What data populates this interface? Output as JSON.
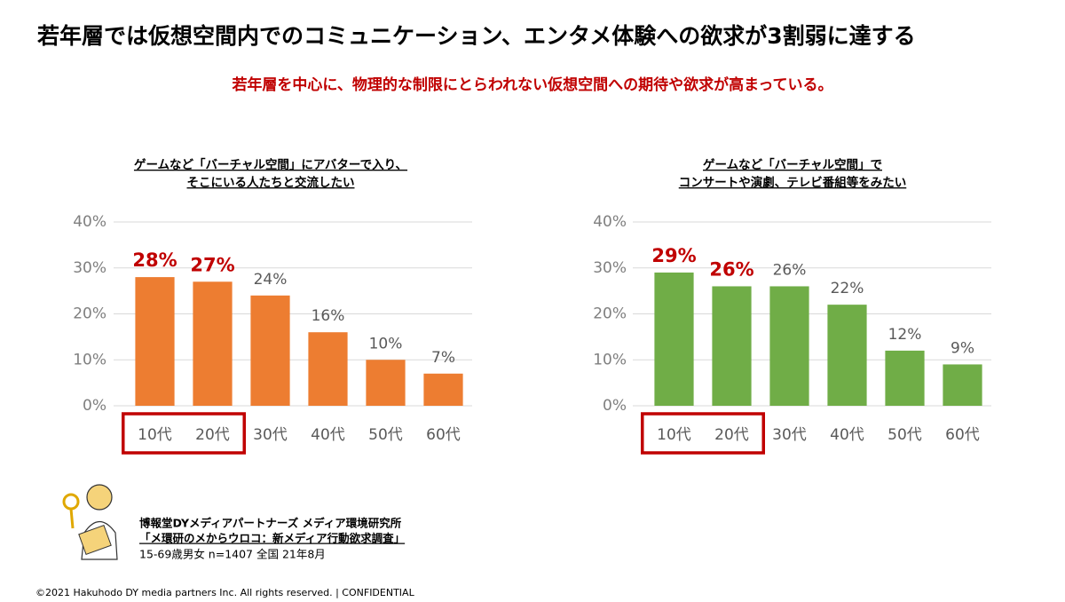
{
  "header": {
    "title": "若年層では仮想空間内でのコミュニケーション、エンタメ体験への欲求が3割弱に達する",
    "subtitle": "若年層を中心に、物理的な制限にとらわれない仮想空間への期待や欲求が高まっている。"
  },
  "chart_data": [
    {
      "type": "bar",
      "title": [
        "ゲームなど「バーチャル空間」にアバターで入り、",
        "そこにいる人たちと交流したい"
      ],
      "categories": [
        "10代",
        "20代",
        "30代",
        "40代",
        "50代",
        "60代"
      ],
      "values": [
        28,
        27,
        24,
        16,
        10,
        7
      ],
      "value_labels": [
        "28%",
        "27%",
        "24%",
        "16%",
        "10%",
        "7%"
      ],
      "value_label_colors": [
        "#c00000",
        "#c00000",
        "#595959",
        "#595959",
        "#595959",
        "#595959"
      ],
      "color": "#ed7d31",
      "ylim": [
        0,
        40
      ],
      "yticks": [
        {
          "value": 0,
          "label": "0%"
        },
        {
          "value": 10,
          "label": "10%"
        },
        {
          "value": 20,
          "label": "20%"
        },
        {
          "value": 30,
          "label": "30%"
        },
        {
          "value": 40,
          "label": "40%"
        }
      ],
      "grid": true
    },
    {
      "type": "bar",
      "title": [
        "ゲームなど「バーチャル空間」で",
        "コンサートや演劇、テレビ番組等をみたい"
      ],
      "categories": [
        "10代",
        "20代",
        "30代",
        "40代",
        "50代",
        "60代"
      ],
      "values": [
        29,
        26,
        26,
        22,
        12,
        9
      ],
      "value_labels": [
        "29%",
        "26%",
        "26%",
        "22%",
        "12%",
        "9%"
      ],
      "value_label_colors": [
        "#c00000",
        "#c00000",
        "#595959",
        "#595959",
        "#595959",
        "#595959"
      ],
      "color": "#70ad47",
      "ylim": [
        0,
        40
      ],
      "yticks": [
        {
          "value": 0,
          "label": "0%"
        },
        {
          "value": 10,
          "label": "10%"
        },
        {
          "value": 20,
          "label": "20%"
        },
        {
          "value": 30,
          "label": "30%"
        },
        {
          "value": 40,
          "label": "40%"
        }
      ],
      "grid": true
    }
  ],
  "source": {
    "org": "博報堂DYメディアパートナーズ メディア環境研究所",
    "survey": "「メ環研のメからウロコ：新メディア行動欲求調査」",
    "sample": "15-69歳男女 n=1407 全国 21年8月"
  },
  "footer": "©2021 Hakuhodo DY media partners Inc. All rights reserved. | CONFIDENTIAL"
}
